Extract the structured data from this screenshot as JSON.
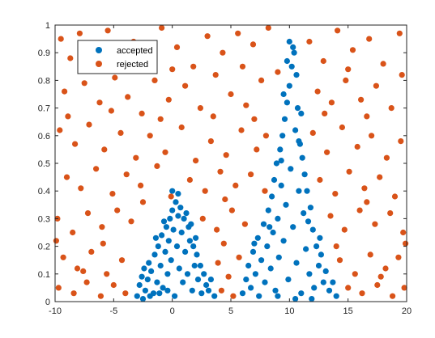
{
  "chart_data": {
    "type": "scatter",
    "title": "",
    "xlabel": "",
    "ylabel": "",
    "xlim": [
      -10,
      20
    ],
    "ylim": [
      0,
      1
    ],
    "xticks": [
      "-10",
      "-5",
      "0",
      "5",
      "10",
      "15",
      "20"
    ],
    "yticks": [
      "0",
      "0.1",
      "0.2",
      "0.3",
      "0.4",
      "0.5",
      "0.6",
      "0.7",
      "0.8",
      "0.9",
      "1"
    ],
    "grid": false,
    "legend_position": "top-left",
    "series": [
      {
        "name": "accepted",
        "color": "#0072BD",
        "points": [
          [
            -3.0,
            0.02
          ],
          [
            -2.8,
            0.06
          ],
          [
            -2.6,
            0.09
          ],
          [
            -2.4,
            0.12
          ],
          [
            -2.3,
            0.04
          ],
          [
            -2.1,
            0.08
          ],
          [
            -2.0,
            0.14
          ],
          [
            -1.8,
            0.11
          ],
          [
            -1.6,
            0.03
          ],
          [
            -1.5,
            0.17
          ],
          [
            -1.3,
            0.07
          ],
          [
            -1.2,
            0.2
          ],
          [
            -1.0,
            0.13
          ],
          [
            -0.9,
            0.24
          ],
          [
            -0.8,
            0.05
          ],
          [
            -0.6,
            0.18
          ],
          [
            -0.5,
            0.27
          ],
          [
            -0.4,
            0.1
          ],
          [
            -0.3,
            0.22
          ],
          [
            -0.2,
            0.3
          ],
          [
            -0.1,
            0.15
          ],
          [
            0.0,
            0.33
          ],
          [
            0.1,
            0.26
          ],
          [
            0.2,
            0.02
          ],
          [
            0.3,
            0.36
          ],
          [
            0.4,
            0.2
          ],
          [
            0.5,
            0.31
          ],
          [
            0.6,
            0.12
          ],
          [
            0.7,
            0.34
          ],
          [
            0.8,
            0.25
          ],
          [
            0.9,
            0.07
          ],
          [
            1.0,
            0.3
          ],
          [
            1.1,
            0.18
          ],
          [
            1.2,
            0.32
          ],
          [
            1.3,
            0.1
          ],
          [
            1.4,
            0.27
          ],
          [
            1.5,
            0.22
          ],
          [
            1.7,
            0.04
          ],
          [
            1.8,
            0.2
          ],
          [
            1.9,
            0.13
          ],
          [
            2.1,
            0.17
          ],
          [
            2.2,
            0.08
          ],
          [
            2.4,
            0.13
          ],
          [
            2.5,
            0.03
          ],
          [
            2.7,
            0.1
          ],
          [
            2.9,
            0.06
          ],
          [
            3.1,
            0.04
          ],
          [
            3.3,
            0.08
          ],
          [
            3.6,
            0.02
          ],
          [
            -2.5,
            0.01
          ],
          [
            -1.9,
            0.02
          ],
          [
            -1.1,
            0.03
          ],
          [
            -0.4,
            0.04
          ],
          [
            0.0,
            0.4
          ],
          [
            0.5,
            0.39
          ],
          [
            -0.7,
            0.29
          ],
          [
            1.6,
            0.28
          ],
          [
            -1.4,
            0.23
          ],
          [
            2.0,
            0.23
          ],
          [
            6.0,
            0.03
          ],
          [
            6.3,
            0.08
          ],
          [
            6.5,
            0.13
          ],
          [
            6.7,
            0.05
          ],
          [
            6.9,
            0.18
          ],
          [
            7.1,
            0.1
          ],
          [
            7.3,
            0.23
          ],
          [
            7.4,
            0.02
          ],
          [
            7.6,
            0.15
          ],
          [
            7.8,
            0.28
          ],
          [
            7.9,
            0.07
          ],
          [
            8.1,
            0.2
          ],
          [
            8.2,
            0.33
          ],
          [
            8.4,
            0.12
          ],
          [
            8.5,
            0.38
          ],
          [
            8.6,
            0.25
          ],
          [
            8.7,
            0.44
          ],
          [
            8.8,
            0.04
          ],
          [
            8.9,
            0.5
          ],
          [
            9.0,
            0.3
          ],
          [
            9.1,
            0.16
          ],
          [
            9.2,
            0.55
          ],
          [
            9.3,
            0.42
          ],
          [
            9.4,
            0.6
          ],
          [
            9.5,
            0.22
          ],
          [
            9.6,
            0.66
          ],
          [
            9.7,
            0.35
          ],
          [
            9.8,
            0.72
          ],
          [
            9.9,
            0.08
          ],
          [
            10.0,
            0.78
          ],
          [
            10.1,
            0.48
          ],
          [
            10.2,
            0.85
          ],
          [
            10.3,
            0.27
          ],
          [
            10.4,
            0.9
          ],
          [
            10.5,
            0.62
          ],
          [
            10.6,
            0.14
          ],
          [
            10.7,
            0.7
          ],
          [
            10.8,
            0.4
          ],
          [
            10.9,
            0.57
          ],
          [
            11.0,
            0.03
          ],
          [
            11.1,
            0.52
          ],
          [
            11.2,
            0.32
          ],
          [
            11.3,
            0.46
          ],
          [
            11.4,
            0.19
          ],
          [
            11.5,
            0.4
          ],
          [
            11.7,
            0.1
          ],
          [
            11.8,
            0.34
          ],
          [
            12.0,
            0.26
          ],
          [
            12.1,
            0.05
          ],
          [
            12.3,
            0.2
          ],
          [
            12.5,
            0.13
          ],
          [
            12.7,
            0.17
          ],
          [
            12.9,
            0.07
          ],
          [
            13.1,
            0.11
          ],
          [
            13.4,
            0.04
          ],
          [
            13.7,
            0.07
          ],
          [
            14.0,
            0.02
          ],
          [
            10.0,
            0.94
          ],
          [
            10.3,
            0.92
          ],
          [
            9.8,
            0.87
          ],
          [
            10.6,
            0.82
          ],
          [
            9.5,
            0.75
          ],
          [
            11.0,
            0.68
          ],
          [
            9.3,
            0.51
          ],
          [
            10.8,
            0.58
          ],
          [
            8.3,
            0.27
          ],
          [
            11.6,
            0.29
          ],
          [
            7.0,
            0.21
          ],
          [
            12.6,
            0.23
          ],
          [
            9.0,
            0.02
          ],
          [
            10.5,
            0.01
          ],
          [
            11.9,
            0.01
          ]
        ]
      },
      {
        "name": "rejected",
        "color": "#D95319",
        "points": [
          [
            -9.5,
            0.95
          ],
          [
            -8.7,
            0.88
          ],
          [
            -7.9,
            0.97
          ],
          [
            -6.8,
            0.91
          ],
          [
            -5.5,
            0.98
          ],
          [
            -4.6,
            0.86
          ],
          [
            -3.3,
            0.94
          ],
          [
            -2.1,
            0.89
          ],
          [
            -0.9,
            0.99
          ],
          [
            0.4,
            0.92
          ],
          [
            1.8,
            0.85
          ],
          [
            3.0,
            0.96
          ],
          [
            4.3,
            0.9
          ],
          [
            5.6,
            0.97
          ],
          [
            6.9,
            0.93
          ],
          [
            8.2,
            0.99
          ],
          [
            9.0,
            0.83
          ],
          [
            11.7,
            0.94
          ],
          [
            12.9,
            0.87
          ],
          [
            14.1,
            0.98
          ],
          [
            15.4,
            0.91
          ],
          [
            16.8,
            0.95
          ],
          [
            18.0,
            0.86
          ],
          [
            19.4,
            0.97
          ],
          [
            -9.2,
            0.76
          ],
          [
            -7.5,
            0.79
          ],
          [
            -6.2,
            0.72
          ],
          [
            -4.9,
            0.81
          ],
          [
            -3.8,
            0.74
          ],
          [
            -2.6,
            0.68
          ],
          [
            -1.5,
            0.8
          ],
          [
            -0.3,
            0.73
          ],
          [
            1.1,
            0.78
          ],
          [
            2.4,
            0.7
          ],
          [
            3.7,
            0.82
          ],
          [
            5.0,
            0.75
          ],
          [
            6.3,
            0.71
          ],
          [
            7.6,
            0.8
          ],
          [
            12.4,
            0.76
          ],
          [
            13.6,
            0.72
          ],
          [
            14.8,
            0.8
          ],
          [
            16.1,
            0.73
          ],
          [
            17.4,
            0.78
          ],
          [
            18.7,
            0.7
          ],
          [
            19.6,
            0.82
          ],
          [
            -9.6,
            0.62
          ],
          [
            -8.3,
            0.57
          ],
          [
            -7.1,
            0.64
          ],
          [
            -5.8,
            0.55
          ],
          [
            -4.4,
            0.61
          ],
          [
            -3.1,
            0.52
          ],
          [
            -1.9,
            0.6
          ],
          [
            -0.6,
            0.54
          ],
          [
            0.8,
            0.63
          ],
          [
            2.0,
            0.51
          ],
          [
            3.3,
            0.58
          ],
          [
            4.6,
            0.53
          ],
          [
            5.9,
            0.62
          ],
          [
            7.2,
            0.55
          ],
          [
            8.0,
            0.6
          ],
          [
            12.0,
            0.61
          ],
          [
            13.2,
            0.54
          ],
          [
            14.5,
            0.63
          ],
          [
            15.8,
            0.56
          ],
          [
            17.0,
            0.6
          ],
          [
            18.3,
            0.52
          ],
          [
            19.5,
            0.58
          ],
          [
            -9.0,
            0.45
          ],
          [
            -7.8,
            0.41
          ],
          [
            -6.5,
            0.48
          ],
          [
            -5.1,
            0.39
          ],
          [
            -3.9,
            0.46
          ],
          [
            -2.7,
            0.42
          ],
          [
            -1.3,
            0.49
          ],
          [
            -0.1,
            0.38
          ],
          [
            1.5,
            0.44
          ],
          [
            2.8,
            0.4
          ],
          [
            4.1,
            0.47
          ],
          [
            5.4,
            0.42
          ],
          [
            6.7,
            0.46
          ],
          [
            7.9,
            0.4
          ],
          [
            12.6,
            0.44
          ],
          [
            13.9,
            0.39
          ],
          [
            15.1,
            0.47
          ],
          [
            16.4,
            0.41
          ],
          [
            17.7,
            0.45
          ],
          [
            19.0,
            0.38
          ],
          [
            -9.8,
            0.3
          ],
          [
            -8.5,
            0.25
          ],
          [
            -7.2,
            0.32
          ],
          [
            -6.0,
            0.27
          ],
          [
            -4.7,
            0.33
          ],
          [
            -3.5,
            0.29
          ],
          [
            2.6,
            0.3
          ],
          [
            3.8,
            0.26
          ],
          [
            5.1,
            0.33
          ],
          [
            6.2,
            0.28
          ],
          [
            13.5,
            0.31
          ],
          [
            14.7,
            0.26
          ],
          [
            16.0,
            0.33
          ],
          [
            17.3,
            0.28
          ],
          [
            18.6,
            0.32
          ],
          [
            19.7,
            0.25
          ],
          [
            -9.3,
            0.16
          ],
          [
            -8.1,
            0.12
          ],
          [
            -6.9,
            0.18
          ],
          [
            -5.6,
            0.1
          ],
          [
            -4.3,
            0.15
          ],
          [
            3.9,
            0.14
          ],
          [
            4.8,
            0.09
          ],
          [
            5.7,
            0.16
          ],
          [
            14.3,
            0.15
          ],
          [
            15.6,
            0.1
          ],
          [
            16.9,
            0.17
          ],
          [
            18.2,
            0.12
          ],
          [
            19.3,
            0.16
          ],
          [
            -9.7,
            0.05
          ],
          [
            -8.4,
            0.03
          ],
          [
            -7.3,
            0.07
          ],
          [
            -6.1,
            0.02
          ],
          [
            -5.0,
            0.06
          ],
          [
            -4.0,
            0.03
          ],
          [
            4.2,
            0.04
          ],
          [
            5.2,
            0.02
          ],
          [
            15.0,
            0.05
          ],
          [
            16.2,
            0.03
          ],
          [
            17.5,
            0.06
          ],
          [
            18.8,
            0.02
          ],
          [
            19.8,
            0.05
          ],
          [
            -8.9,
            0.67
          ],
          [
            -5.2,
            0.69
          ],
          [
            -1.0,
            0.66
          ],
          [
            3.5,
            0.67
          ],
          [
            7.0,
            0.66
          ],
          [
            13.0,
            0.68
          ],
          [
            16.6,
            0.67
          ],
          [
            -7.0,
            0.84
          ],
          [
            0.0,
            0.84
          ],
          [
            6.0,
            0.85
          ],
          [
            15.0,
            0.84
          ],
          [
            -2.5,
            0.36
          ],
          [
            4.5,
            0.37
          ],
          [
            16.6,
            0.36
          ],
          [
            -9.9,
            0.22
          ],
          [
            -5.9,
            0.21
          ],
          [
            4.4,
            0.21
          ],
          [
            14.0,
            0.2
          ],
          [
            19.9,
            0.21
          ],
          [
            -7.6,
            0.11
          ],
          [
            17.8,
            0.09
          ]
        ]
      }
    ]
  }
}
